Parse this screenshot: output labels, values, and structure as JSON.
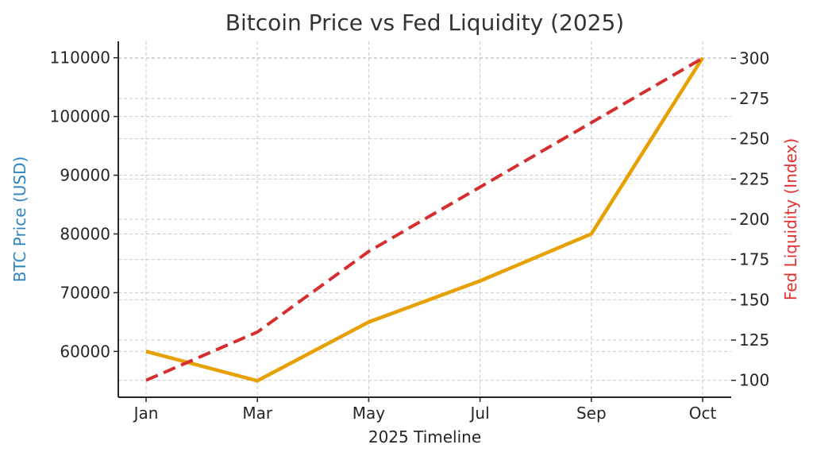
{
  "chart_data": {
    "type": "line",
    "title": "Bitcoin Price vs Fed Liquidity (2025)",
    "xlabel": "2025 Timeline",
    "categories": [
      "Jan",
      "Mar",
      "May",
      "Jul",
      "Sep",
      "Oct"
    ],
    "y_left": {
      "label": "BTC Price (USD)",
      "label_color": "#2e86c1",
      "lim": [
        52200,
        112800
      ],
      "ticks": [
        60000,
        70000,
        80000,
        90000,
        100000,
        110000
      ],
      "tick_labels": [
        "60000",
        "70000",
        "80000",
        "90000",
        "100000",
        "110000"
      ]
    },
    "y_right": {
      "label": "Fed Liquidity (Index)",
      "label_color": "#e03030",
      "lim": [
        89.5,
        310.5
      ],
      "ticks": [
        100,
        125,
        150,
        175,
        200,
        225,
        250,
        275,
        300
      ],
      "tick_labels": [
        "100",
        "125",
        "150",
        "175",
        "200",
        "225",
        "250",
        "275",
        "300"
      ]
    },
    "series": [
      {
        "name": "BTC Price (USD)",
        "axis": "left",
        "color": "#e6a000",
        "style": "solid",
        "values": [
          60000,
          55000,
          65000,
          72000,
          80000,
          110000
        ]
      },
      {
        "name": "Fed Liquidity (Index)",
        "axis": "right",
        "color": "#d62e2e",
        "style": "dashed",
        "values": [
          100,
          130,
          180,
          220,
          260,
          300
        ]
      }
    ],
    "grid": true,
    "legend": "none"
  }
}
